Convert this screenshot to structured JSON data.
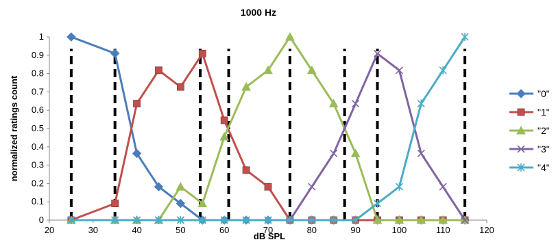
{
  "chart_data": {
    "type": "line",
    "title": "1000 Hz",
    "xlabel": "dB SPL",
    "ylabel": "normalized ratings count",
    "xlim": [
      20,
      120
    ],
    "ylim": [
      0,
      1
    ],
    "x_ticks": [
      "20",
      "30",
      "40",
      "50",
      "60",
      "70",
      "80",
      "90",
      "100",
      "110",
      "120"
    ],
    "y_ticks": [
      "0",
      "0.1",
      "0.2",
      "0.3",
      "0.4",
      "0.5",
      "0.6",
      "0.7",
      "0.8",
      "0.9",
      "1"
    ],
    "grid": false,
    "legend_position": "right",
    "x": [
      25,
      35,
      40,
      45,
      50,
      55,
      60,
      65,
      70,
      75,
      80,
      85,
      90,
      95,
      100,
      105,
      110,
      115
    ],
    "series": [
      {
        "name": "\"0\"",
        "color": "#4a7ebb",
        "marker": "diamond",
        "values": [
          1,
          0.91,
          0.364,
          0.182,
          0.091,
          0,
          0,
          0,
          0,
          0,
          0,
          0,
          0,
          0,
          0,
          0,
          0,
          0
        ]
      },
      {
        "name": "\"1\"",
        "color": "#c0504d",
        "marker": "square",
        "values": [
          0,
          0.091,
          0.636,
          0.818,
          0.727,
          0.909,
          0.545,
          0.273,
          0.182,
          0,
          0,
          0,
          0,
          0,
          0,
          0,
          0,
          0
        ]
      },
      {
        "name": "\"2\"",
        "color": "#9bbb59",
        "marker": "triangle",
        "values": [
          0,
          0,
          0,
          0,
          0.182,
          0.091,
          0.455,
          0.727,
          0.818,
          1,
          0.818,
          0.636,
          0.364,
          0,
          0,
          0,
          0,
          0
        ]
      },
      {
        "name": "\"3\"",
        "color": "#8064a2",
        "marker": "x",
        "values": [
          0,
          0,
          0,
          0,
          0,
          0,
          0,
          0,
          0,
          0,
          0.182,
          0.364,
          0.636,
          0.909,
          0.818,
          0.364,
          0.182,
          0
        ]
      },
      {
        "name": "\"4\"",
        "color": "#4bacc6",
        "marker": "star",
        "values": [
          0,
          0,
          0,
          0,
          0,
          0,
          0,
          0,
          0,
          0,
          0,
          0,
          0,
          0.091,
          0.182,
          0.636,
          0.818,
          1
        ]
      }
    ],
    "threshold_lines": {
      "color": "#000000",
      "style": "dashed",
      "x": [
        25,
        35,
        54.5,
        61,
        75,
        87.5,
        95,
        115
      ]
    }
  }
}
